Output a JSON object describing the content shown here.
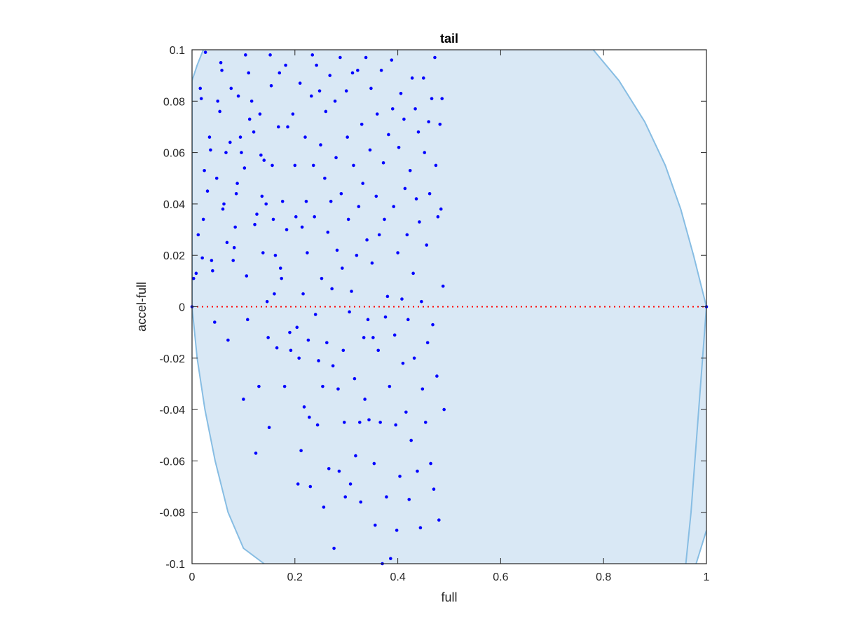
{
  "chart_data": {
    "type": "scatter",
    "title": "tail",
    "xlabel": "full",
    "ylabel": "accel-full",
    "xlim": [
      0,
      1
    ],
    "ylim": [
      -0.1,
      0.1
    ],
    "xticks": [
      "0",
      "0.2",
      "0.4",
      "0.6",
      "0.8",
      "1"
    ],
    "yticks": [
      "-0.1",
      "-0.08",
      "-0.06",
      "-0.04",
      "-0.02",
      "0",
      "0.02",
      "0.04",
      "0.06",
      "0.08",
      "0.1"
    ],
    "xtick_values": [
      0,
      0.2,
      0.4,
      0.6,
      0.8,
      1
    ],
    "ytick_values": [
      -0.1,
      -0.08,
      -0.06,
      -0.04,
      -0.02,
      0,
      0.02,
      0.04,
      0.06,
      0.08,
      0.1
    ],
    "grid": false,
    "colors": {
      "region_fill": "#d9e8f5",
      "region_edge": "#87bde3",
      "points": "#0000ff",
      "zero_line": "#ff0000",
      "axes": "#262626"
    },
    "region": {
      "left_boundary": [
        [
          0.0,
          0.0
        ],
        [
          0.01,
          -0.02
        ],
        [
          0.025,
          -0.04
        ],
        [
          0.045,
          -0.06
        ],
        [
          0.07,
          -0.08
        ],
        [
          0.1,
          -0.094
        ],
        [
          0.14,
          -0.1
        ]
      ],
      "upper_left_boundary": [
        [
          0.0,
          0.0
        ],
        [
          0.0,
          0.088
        ],
        [
          0.01,
          0.094
        ],
        [
          0.022,
          0.1
        ]
      ],
      "right_boundary": [
        [
          0.78,
          0.1
        ],
        [
          0.83,
          0.088
        ],
        [
          0.88,
          0.072
        ],
        [
          0.92,
          0.055
        ],
        [
          0.95,
          0.038
        ],
        [
          0.975,
          0.02
        ],
        [
          1.0,
          0.0
        ],
        [
          0.985,
          -0.04
        ],
        [
          0.97,
          -0.08
        ],
        [
          0.96,
          -0.1
        ]
      ],
      "lower_corner_edge": [
        [
          0.98,
          -0.1
        ],
        [
          1.0,
          -0.087
        ]
      ]
    },
    "series": [
      {
        "values_xy": [
          [
            0.0,
            0.0
          ],
          [
            1.0,
            0.0
          ],
          [
            0.003,
            0.011
          ],
          [
            0.008,
            0.013
          ],
          [
            0.012,
            0.028
          ],
          [
            0.016,
            0.085
          ],
          [
            0.018,
            0.081
          ],
          [
            0.02,
            0.019
          ],
          [
            0.022,
            0.034
          ],
          [
            0.024,
            0.053
          ],
          [
            0.026,
            0.099
          ],
          [
            0.03,
            0.045
          ],
          [
            0.034,
            0.066
          ],
          [
            0.036,
            0.061
          ],
          [
            0.038,
            0.018
          ],
          [
            0.04,
            0.014
          ],
          [
            0.044,
            -0.006
          ],
          [
            0.048,
            0.05
          ],
          [
            0.05,
            0.08
          ],
          [
            0.054,
            0.076
          ],
          [
            0.056,
            0.095
          ],
          [
            0.058,
            0.092
          ],
          [
            0.06,
            0.038
          ],
          [
            0.062,
            0.04
          ],
          [
            0.066,
            0.06
          ],
          [
            0.068,
            0.025
          ],
          [
            0.07,
            -0.013
          ],
          [
            0.074,
            0.064
          ],
          [
            0.076,
            0.085
          ],
          [
            0.08,
            0.018
          ],
          [
            0.082,
            0.023
          ],
          [
            0.084,
            0.031
          ],
          [
            0.086,
            0.044
          ],
          [
            0.088,
            0.048
          ],
          [
            0.09,
            0.082
          ],
          [
            0.094,
            0.066
          ],
          [
            0.096,
            0.06
          ],
          [
            0.1,
            -0.036
          ],
          [
            0.102,
            0.054
          ],
          [
            0.104,
            0.098
          ],
          [
            0.106,
            0.012
          ],
          [
            0.108,
            -0.005
          ],
          [
            0.11,
            0.091
          ],
          [
            0.112,
            0.073
          ],
          [
            0.116,
            0.08
          ],
          [
            0.12,
            0.068
          ],
          [
            0.122,
            0.032
          ],
          [
            0.124,
            -0.057
          ],
          [
            0.126,
            0.036
          ],
          [
            0.13,
            -0.031
          ],
          [
            0.132,
            0.075
          ],
          [
            0.134,
            0.059
          ],
          [
            0.136,
            0.043
          ],
          [
            0.138,
            0.021
          ],
          [
            0.14,
            0.057
          ],
          [
            0.144,
            0.04
          ],
          [
            0.146,
            0.002
          ],
          [
            0.148,
            -0.012
          ],
          [
            0.15,
            -0.047
          ],
          [
            0.152,
            0.098
          ],
          [
            0.154,
            0.086
          ],
          [
            0.156,
            0.055
          ],
          [
            0.158,
            0.034
          ],
          [
            0.16,
            0.005
          ],
          [
            0.162,
            0.02
          ],
          [
            0.165,
            -0.016
          ],
          [
            0.168,
            0.07
          ],
          [
            0.17,
            0.091
          ],
          [
            0.172,
            0.015
          ],
          [
            0.174,
            0.011
          ],
          [
            0.176,
            0.041
          ],
          [
            0.18,
            -0.031
          ],
          [
            0.182,
            0.094
          ],
          [
            0.184,
            0.03
          ],
          [
            0.186,
            0.07
          ],
          [
            0.19,
            -0.01
          ],
          [
            0.192,
            -0.017
          ],
          [
            0.196,
            0.075
          ],
          [
            0.2,
            0.055
          ],
          [
            0.202,
            0.035
          ],
          [
            0.204,
            -0.008
          ],
          [
            0.206,
            -0.069
          ],
          [
            0.208,
            -0.02
          ],
          [
            0.21,
            0.087
          ],
          [
            0.212,
            -0.056
          ],
          [
            0.214,
            0.031
          ],
          [
            0.216,
            0.005
          ],
          [
            0.218,
            -0.039
          ],
          [
            0.22,
            0.066
          ],
          [
            0.222,
            0.041
          ],
          [
            0.224,
            0.021
          ],
          [
            0.226,
            -0.013
          ],
          [
            0.228,
            -0.043
          ],
          [
            0.23,
            -0.07
          ],
          [
            0.232,
            0.082
          ],
          [
            0.234,
            0.098
          ],
          [
            0.236,
            0.055
          ],
          [
            0.238,
            0.035
          ],
          [
            0.24,
            -0.003
          ],
          [
            0.242,
            0.094
          ],
          [
            0.244,
            -0.046
          ],
          [
            0.246,
            -0.021
          ],
          [
            0.248,
            0.084
          ],
          [
            0.25,
            0.063
          ],
          [
            0.252,
            0.011
          ],
          [
            0.254,
            -0.031
          ],
          [
            0.256,
            -0.078
          ],
          [
            0.258,
            0.05
          ],
          [
            0.26,
            0.076
          ],
          [
            0.262,
            -0.014
          ],
          [
            0.264,
            0.029
          ],
          [
            0.266,
            -0.063
          ],
          [
            0.268,
            0.09
          ],
          [
            0.27,
            0.041
          ],
          [
            0.272,
            0.007
          ],
          [
            0.274,
            -0.023
          ],
          [
            0.276,
            -0.094
          ],
          [
            0.278,
            0.08
          ],
          [
            0.28,
            0.058
          ],
          [
            0.282,
            0.022
          ],
          [
            0.284,
            -0.032
          ],
          [
            0.286,
            -0.064
          ],
          [
            0.288,
            0.097
          ],
          [
            0.29,
            0.044
          ],
          [
            0.292,
            0.015
          ],
          [
            0.294,
            -0.017
          ],
          [
            0.296,
            -0.045
          ],
          [
            0.298,
            -0.074
          ],
          [
            0.3,
            0.084
          ],
          [
            0.302,
            0.066
          ],
          [
            0.304,
            0.034
          ],
          [
            0.306,
            -0.002
          ],
          [
            0.308,
            -0.069
          ],
          [
            0.31,
            0.006
          ],
          [
            0.312,
            0.091
          ],
          [
            0.314,
            0.055
          ],
          [
            0.316,
            -0.028
          ],
          [
            0.318,
            -0.058
          ],
          [
            0.32,
            0.02
          ],
          [
            0.322,
            0.092
          ],
          [
            0.324,
            0.039
          ],
          [
            0.326,
            -0.045
          ],
          [
            0.328,
            -0.076
          ],
          [
            0.33,
            0.071
          ],
          [
            0.332,
            0.048
          ],
          [
            0.334,
            -0.012
          ],
          [
            0.336,
            -0.036
          ],
          [
            0.338,
            0.097
          ],
          [
            0.34,
            0.026
          ],
          [
            0.342,
            -0.005
          ],
          [
            0.344,
            -0.044
          ],
          [
            0.346,
            0.061
          ],
          [
            0.348,
            0.085
          ],
          [
            0.35,
            0.017
          ],
          [
            0.352,
            -0.012
          ],
          [
            0.354,
            -0.061
          ],
          [
            0.356,
            -0.085
          ],
          [
            0.358,
            0.043
          ],
          [
            0.36,
            0.075
          ],
          [
            0.362,
            -0.017
          ],
          [
            0.364,
            0.028
          ],
          [
            0.366,
            -0.045
          ],
          [
            0.368,
            0.092
          ],
          [
            0.37,
            -0.1
          ],
          [
            0.372,
            0.056
          ],
          [
            0.374,
            0.034
          ],
          [
            0.376,
            -0.004
          ],
          [
            0.378,
            -0.074
          ],
          [
            0.38,
            0.004
          ],
          [
            0.382,
            0.067
          ],
          [
            0.384,
            -0.031
          ],
          [
            0.386,
            -0.098
          ],
          [
            0.388,
            0.096
          ],
          [
            0.39,
            0.077
          ],
          [
            0.392,
            0.039
          ],
          [
            0.394,
            -0.011
          ],
          [
            0.396,
            -0.046
          ],
          [
            0.398,
            -0.087
          ],
          [
            0.4,
            0.021
          ],
          [
            0.402,
            0.062
          ],
          [
            0.404,
            -0.066
          ],
          [
            0.406,
            0.083
          ],
          [
            0.408,
            0.003
          ],
          [
            0.41,
            -0.022
          ],
          [
            0.412,
            0.073
          ],
          [
            0.414,
            0.046
          ],
          [
            0.416,
            -0.041
          ],
          [
            0.418,
            0.028
          ],
          [
            0.42,
            -0.005
          ],
          [
            0.422,
            -0.075
          ],
          [
            0.424,
            0.053
          ],
          [
            0.426,
            -0.052
          ],
          [
            0.428,
            0.089
          ],
          [
            0.43,
            0.013
          ],
          [
            0.432,
            -0.02
          ],
          [
            0.434,
            0.077
          ],
          [
            0.436,
            0.042
          ],
          [
            0.438,
            -0.064
          ],
          [
            0.44,
            0.068
          ],
          [
            0.442,
            0.033
          ],
          [
            0.444,
            -0.086
          ],
          [
            0.446,
            0.002
          ],
          [
            0.448,
            -0.032
          ],
          [
            0.45,
            0.089
          ],
          [
            0.452,
            0.06
          ],
          [
            0.454,
            -0.045
          ],
          [
            0.456,
            0.024
          ],
          [
            0.458,
            -0.014
          ],
          [
            0.46,
            0.072
          ],
          [
            0.462,
            0.044
          ],
          [
            0.464,
            -0.061
          ],
          [
            0.466,
            0.081
          ],
          [
            0.468,
            -0.007
          ],
          [
            0.47,
            -0.071
          ],
          [
            0.472,
            0.097
          ],
          [
            0.474,
            0.055
          ],
          [
            0.476,
            -0.027
          ],
          [
            0.478,
            0.035
          ],
          [
            0.48,
            -0.083
          ],
          [
            0.482,
            0.071
          ],
          [
            0.484,
            0.038
          ],
          [
            0.486,
            0.081
          ],
          [
            0.488,
            0.008
          ],
          [
            0.49,
            -0.04
          ]
        ]
      }
    ],
    "zero_line": {
      "y": 0,
      "style": "dotted"
    }
  }
}
